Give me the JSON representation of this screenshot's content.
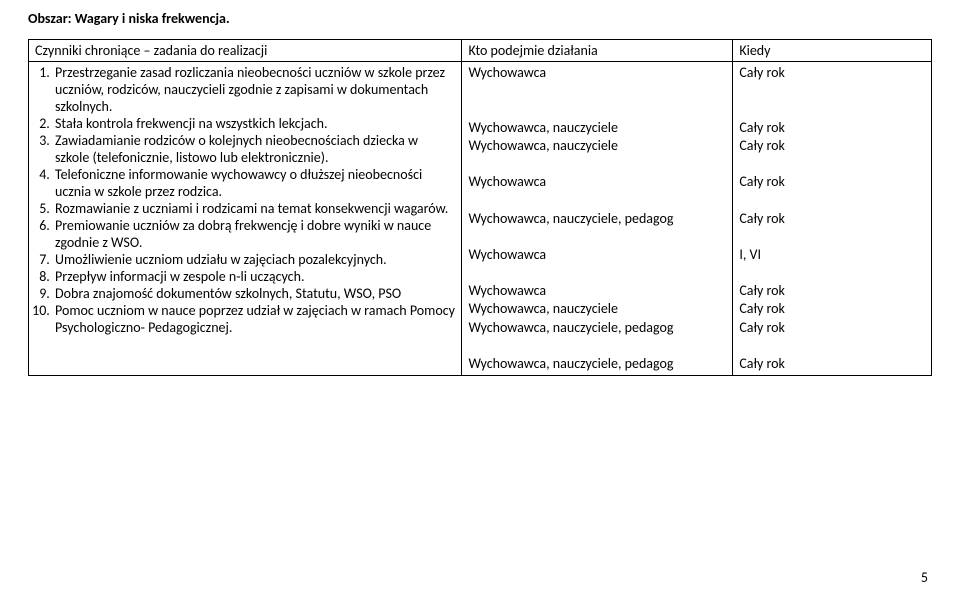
{
  "heading": "Obszar: Wagary i niska frekwencja.",
  "columns": {
    "tasks": "Czynniki chroniące – zadania do realizacji",
    "who": "Kto podejmie działania",
    "when": "Kiedy"
  },
  "rows": [
    {
      "task": "Przestrzeganie zasad rozliczania nieobecności uczniów w  szkole przez uczniów, rodziców, nauczycieli zgodnie z zapisami  w dokumentach szkolnych.",
      "who": "Wychowawca",
      "when": "Cały rok"
    },
    {
      "task": "Stała kontrola frekwencji na wszystkich lekcjach.",
      "who": "Wychowawca, nauczyciele",
      "when": "Cały rok"
    },
    {
      "task": "Zawiadamianie rodziców o kolejnych nieobecnościach dziecka w szkole (telefonicznie, listowo lub elektronicznie).",
      "who": "Wychowawca, nauczyciele",
      "when": "Cały rok"
    },
    {
      "task": "Telefoniczne informowanie wychowawcy o dłuższej nieobecności ucznia w szkole przez rodzica.",
      "who": "Wychowawca",
      "when": "Cały rok"
    },
    {
      "task": "Rozmawianie z uczniami i rodzicami  na temat konsekwencji wagarów.",
      "who": "Wychowawca, nauczyciele, pedagog",
      "when": "Cały rok"
    },
    {
      "task": "Premiowanie uczniów za dobrą  frekwencję i dobre wyniki w nauce zgodnie z WSO.",
      "who": "Wychowawca",
      "when": "I, VI"
    },
    {
      "task": "Umożliwienie uczniom udziału w zajęciach pozalekcyjnych.",
      "who": "Wychowawca",
      "when": "Cały rok"
    },
    {
      "task": "Przepływ informacji w zespole n-li uczących.",
      "who": "Wychowawca, nauczyciele",
      "when": "Cały rok"
    },
    {
      "task": "Dobra znajomość dokumentów szkolnych, Statutu, WSO, PSO",
      "who": "Wychowawca, nauczyciele, pedagog",
      "when": "Cały rok"
    },
    {
      "task": "Pomoc uczniom w nauce poprzez udział w zajęciach w ramach Pomocy Psychologiczno- Pedagogicznej.",
      "who": "Wychowawca, nauczyciele, pedagog",
      "when": "Cały rok"
    }
  ],
  "who_lines": [
    "Wychowawca",
    "",
    "",
    "Wychowawca, nauczyciele",
    "Wychowawca, nauczyciele",
    "",
    "Wychowawca",
    "",
    "Wychowawca, nauczyciele, pedagog",
    "",
    "Wychowawca",
    "",
    "Wychowawca",
    "Wychowawca, nauczyciele",
    "Wychowawca, nauczyciele, pedagog",
    "",
    "Wychowawca, nauczyciele, pedagog"
  ],
  "when_lines": [
    "Cały rok",
    "",
    "",
    "Cały rok",
    "Cały rok",
    "",
    "Cały rok",
    "",
    "Cały rok",
    "",
    "I, VI",
    "",
    "Cały rok",
    "Cały rok",
    "Cały rok",
    "",
    "Cały rok"
  ],
  "page_number": "5"
}
